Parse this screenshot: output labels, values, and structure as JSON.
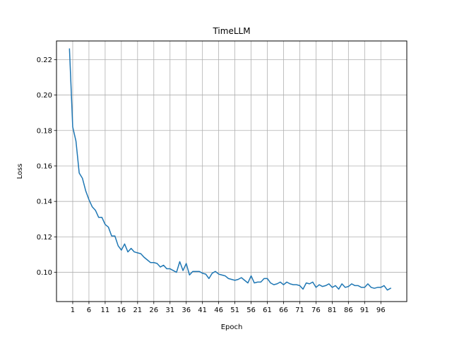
{
  "chart_data": {
    "type": "line",
    "title": "TimeLLM",
    "xlabel": "Epoch",
    "ylabel": "Loss",
    "xlim": [
      -4,
      104
    ],
    "ylim": [
      0.0835,
      0.2305
    ],
    "xticks": [
      1,
      6,
      11,
      16,
      21,
      26,
      31,
      36,
      41,
      46,
      51,
      56,
      61,
      66,
      71,
      76,
      81,
      86,
      91,
      96
    ],
    "yticks": [
      0.1,
      0.12,
      0.14,
      0.16,
      0.18,
      0.2,
      0.22
    ],
    "ytick_labels": [
      "0.10",
      "0.12",
      "0.14",
      "0.16",
      "0.18",
      "0.20",
      "0.22"
    ],
    "grid": true,
    "series": [
      {
        "color": "#1f77b4",
        "x": [
          0,
          1,
          2,
          3,
          4,
          5,
          6,
          7,
          8,
          9,
          10,
          11,
          12,
          13,
          14,
          15,
          16,
          17,
          18,
          19,
          20,
          21,
          22,
          23,
          24,
          25,
          26,
          27,
          28,
          29,
          30,
          31,
          32,
          33,
          34,
          35,
          36,
          37,
          38,
          39,
          40,
          41,
          42,
          43,
          44,
          45,
          46,
          47,
          48,
          49,
          50,
          51,
          52,
          53,
          54,
          55,
          56,
          57,
          58,
          59,
          60,
          61,
          62,
          63,
          64,
          65,
          66,
          67,
          68,
          69,
          70,
          71,
          72,
          73,
          74,
          75,
          76,
          77,
          78,
          79,
          80,
          81,
          82,
          83,
          84,
          85,
          86,
          87,
          88,
          89,
          90,
          91,
          92,
          93,
          94,
          95,
          96,
          97,
          98,
          99
        ],
        "values": [
          0.226,
          0.182,
          0.174,
          0.156,
          0.153,
          0.146,
          0.141,
          0.137,
          0.135,
          0.131,
          0.131,
          0.127,
          0.1255,
          0.1205,
          0.1205,
          0.115,
          0.1125,
          0.116,
          0.1115,
          0.1135,
          0.1115,
          0.111,
          0.1105,
          0.1085,
          0.107,
          0.1055,
          0.1055,
          0.105,
          0.103,
          0.104,
          0.102,
          0.102,
          0.101,
          0.1,
          0.106,
          0.101,
          0.105,
          0.0985,
          0.1005,
          0.1005,
          0.1005,
          0.0995,
          0.099,
          0.0965,
          0.0995,
          0.1005,
          0.099,
          0.0985,
          0.098,
          0.0965,
          0.096,
          0.0955,
          0.096,
          0.097,
          0.0955,
          0.094,
          0.098,
          0.094,
          0.0945,
          0.0945,
          0.0965,
          0.0965,
          0.094,
          0.093,
          0.0935,
          0.0945,
          0.093,
          0.0945,
          0.0935,
          0.093,
          0.093,
          0.0925,
          0.0905,
          0.094,
          0.0935,
          0.0945,
          0.0915,
          0.093,
          0.092,
          0.0925,
          0.0935,
          0.0915,
          0.0925,
          0.0905,
          0.0935,
          0.0915,
          0.092,
          0.0935,
          0.0925,
          0.0925,
          0.0915,
          0.0915,
          0.0935,
          0.0915,
          0.091,
          0.0915,
          0.0915,
          0.0925,
          0.09,
          0.091
        ]
      }
    ]
  }
}
